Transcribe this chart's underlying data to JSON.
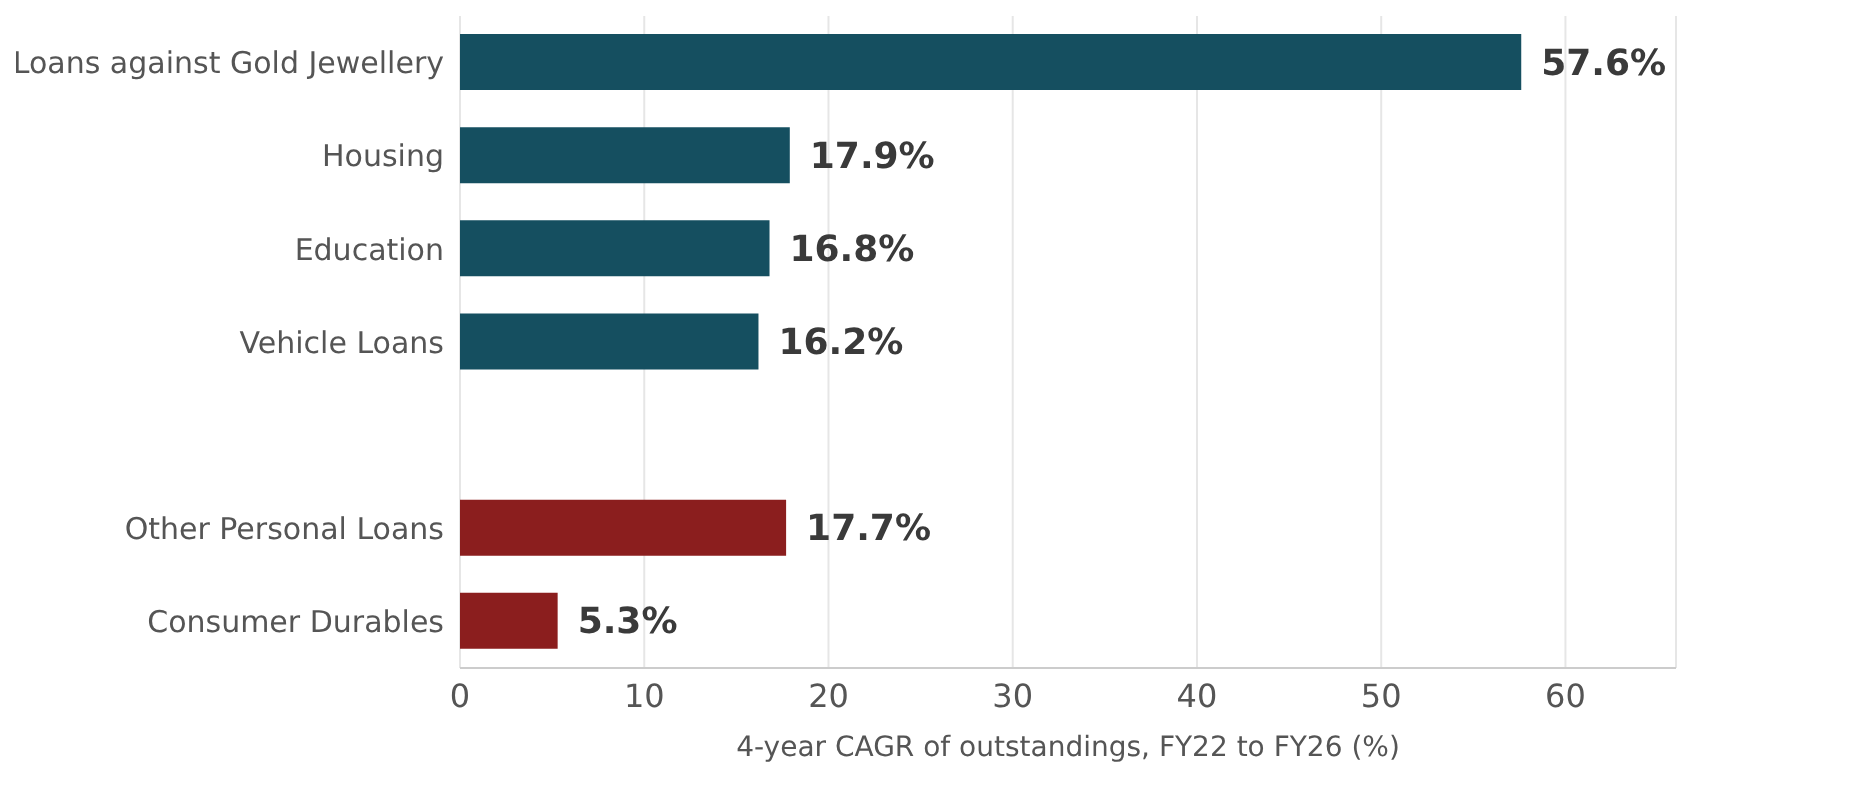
{
  "chart_data": {
    "type": "bar",
    "orientation": "horizontal",
    "xlabel": "4-year CAGR of outstandings, FY22 to FY26 (%)",
    "categories": [
      "Loans against Gold Jewellery",
      "Housing",
      "Education",
      "Vehicle Loans",
      null,
      "Other Personal Loans",
      "Consumer Durables"
    ],
    "values": [
      57.6,
      17.9,
      16.8,
      16.2,
      null,
      17.7,
      5.3
    ],
    "colors": [
      "#154f60",
      "#154f60",
      "#154f60",
      "#154f60",
      "#154f60",
      "#8b1e1e",
      "#8b1e1e"
    ],
    "value_labels": [
      "57.6%",
      "17.9%",
      "16.8%",
      "16.2%",
      null,
      "17.7%",
      "5.3%"
    ],
    "xlim": [
      0,
      66
    ],
    "xticks": [
      0,
      10,
      20,
      30,
      40,
      50,
      60
    ],
    "grid": "x",
    "legend": false
  }
}
